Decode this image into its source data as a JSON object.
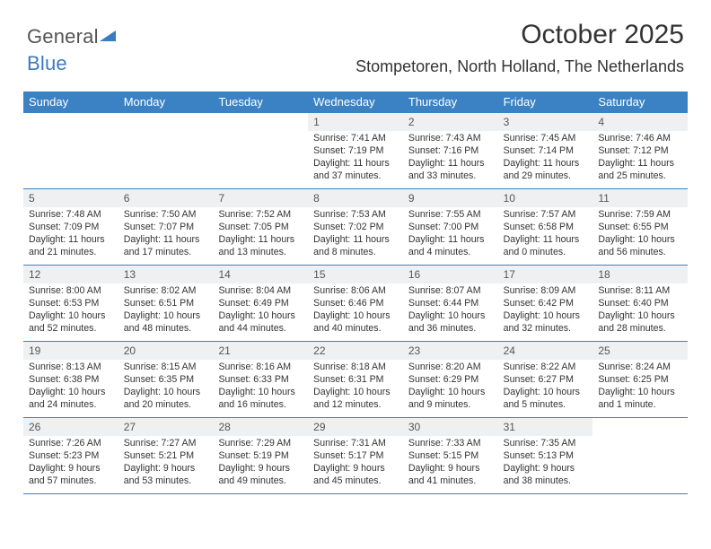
{
  "brand": {
    "part1": "General",
    "part2": "Blue"
  },
  "title": "October 2025",
  "location": "Stompetoren, North Holland, The Netherlands",
  "colors": {
    "header_bg": "#3b82c4",
    "header_text": "#ffffff",
    "daynum_bg": "#eef0f2",
    "text": "#333333",
    "rule": "#3b82c4",
    "logo_gray": "#555555",
    "logo_blue": "#3b7bbf"
  },
  "day_headers": [
    "Sunday",
    "Monday",
    "Tuesday",
    "Wednesday",
    "Thursday",
    "Friday",
    "Saturday"
  ],
  "weeks": [
    [
      {
        "n": "",
        "empty": true
      },
      {
        "n": "",
        "empty": true
      },
      {
        "n": "",
        "empty": true
      },
      {
        "n": "1",
        "sunrise": "7:41 AM",
        "sunset": "7:19 PM",
        "daylight": "11 hours and 37 minutes."
      },
      {
        "n": "2",
        "sunrise": "7:43 AM",
        "sunset": "7:16 PM",
        "daylight": "11 hours and 33 minutes."
      },
      {
        "n": "3",
        "sunrise": "7:45 AM",
        "sunset": "7:14 PM",
        "daylight": "11 hours and 29 minutes."
      },
      {
        "n": "4",
        "sunrise": "7:46 AM",
        "sunset": "7:12 PM",
        "daylight": "11 hours and 25 minutes."
      }
    ],
    [
      {
        "n": "5",
        "sunrise": "7:48 AM",
        "sunset": "7:09 PM",
        "daylight": "11 hours and 21 minutes."
      },
      {
        "n": "6",
        "sunrise": "7:50 AM",
        "sunset": "7:07 PM",
        "daylight": "11 hours and 17 minutes."
      },
      {
        "n": "7",
        "sunrise": "7:52 AM",
        "sunset": "7:05 PM",
        "daylight": "11 hours and 13 minutes."
      },
      {
        "n": "8",
        "sunrise": "7:53 AM",
        "sunset": "7:02 PM",
        "daylight": "11 hours and 8 minutes."
      },
      {
        "n": "9",
        "sunrise": "7:55 AM",
        "sunset": "7:00 PM",
        "daylight": "11 hours and 4 minutes."
      },
      {
        "n": "10",
        "sunrise": "7:57 AM",
        "sunset": "6:58 PM",
        "daylight": "11 hours and 0 minutes."
      },
      {
        "n": "11",
        "sunrise": "7:59 AM",
        "sunset": "6:55 PM",
        "daylight": "10 hours and 56 minutes."
      }
    ],
    [
      {
        "n": "12",
        "sunrise": "8:00 AM",
        "sunset": "6:53 PM",
        "daylight": "10 hours and 52 minutes."
      },
      {
        "n": "13",
        "sunrise": "8:02 AM",
        "sunset": "6:51 PM",
        "daylight": "10 hours and 48 minutes."
      },
      {
        "n": "14",
        "sunrise": "8:04 AM",
        "sunset": "6:49 PM",
        "daylight": "10 hours and 44 minutes."
      },
      {
        "n": "15",
        "sunrise": "8:06 AM",
        "sunset": "6:46 PM",
        "daylight": "10 hours and 40 minutes."
      },
      {
        "n": "16",
        "sunrise": "8:07 AM",
        "sunset": "6:44 PM",
        "daylight": "10 hours and 36 minutes."
      },
      {
        "n": "17",
        "sunrise": "8:09 AM",
        "sunset": "6:42 PM",
        "daylight": "10 hours and 32 minutes."
      },
      {
        "n": "18",
        "sunrise": "8:11 AM",
        "sunset": "6:40 PM",
        "daylight": "10 hours and 28 minutes."
      }
    ],
    [
      {
        "n": "19",
        "sunrise": "8:13 AM",
        "sunset": "6:38 PM",
        "daylight": "10 hours and 24 minutes."
      },
      {
        "n": "20",
        "sunrise": "8:15 AM",
        "sunset": "6:35 PM",
        "daylight": "10 hours and 20 minutes."
      },
      {
        "n": "21",
        "sunrise": "8:16 AM",
        "sunset": "6:33 PM",
        "daylight": "10 hours and 16 minutes."
      },
      {
        "n": "22",
        "sunrise": "8:18 AM",
        "sunset": "6:31 PM",
        "daylight": "10 hours and 12 minutes."
      },
      {
        "n": "23",
        "sunrise": "8:20 AM",
        "sunset": "6:29 PM",
        "daylight": "10 hours and 9 minutes."
      },
      {
        "n": "24",
        "sunrise": "8:22 AM",
        "sunset": "6:27 PM",
        "daylight": "10 hours and 5 minutes."
      },
      {
        "n": "25",
        "sunrise": "8:24 AM",
        "sunset": "6:25 PM",
        "daylight": "10 hours and 1 minute."
      }
    ],
    [
      {
        "n": "26",
        "sunrise": "7:26 AM",
        "sunset": "5:23 PM",
        "daylight": "9 hours and 57 minutes."
      },
      {
        "n": "27",
        "sunrise": "7:27 AM",
        "sunset": "5:21 PM",
        "daylight": "9 hours and 53 minutes."
      },
      {
        "n": "28",
        "sunrise": "7:29 AM",
        "sunset": "5:19 PM",
        "daylight": "9 hours and 49 minutes."
      },
      {
        "n": "29",
        "sunrise": "7:31 AM",
        "sunset": "5:17 PM",
        "daylight": "9 hours and 45 minutes."
      },
      {
        "n": "30",
        "sunrise": "7:33 AM",
        "sunset": "5:15 PM",
        "daylight": "9 hours and 41 minutes."
      },
      {
        "n": "31",
        "sunrise": "7:35 AM",
        "sunset": "5:13 PM",
        "daylight": "9 hours and 38 minutes."
      },
      {
        "n": "",
        "empty": true
      }
    ]
  ],
  "labels": {
    "sunrise": "Sunrise: ",
    "sunset": "Sunset: ",
    "daylight": "Daylight: "
  }
}
